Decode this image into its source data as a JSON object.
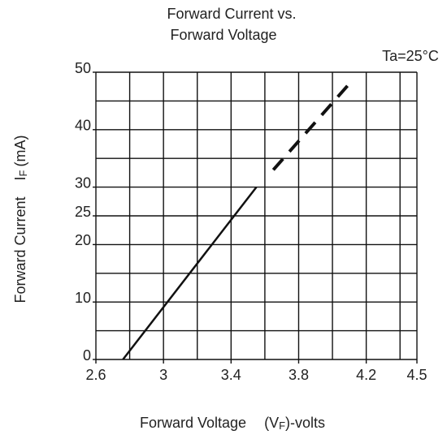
{
  "chart_data": {
    "type": "line",
    "title": [
      "Forward Current vs.",
      "Forward Voltage"
    ],
    "annotation": "Ta=25°C",
    "xlabel": [
      "Forward Voltage",
      "(V",
      "F",
      ")-volts"
    ],
    "ylabel": [
      "Forward Current",
      "I",
      "F",
      "(mA)"
    ],
    "xlim": [
      2.6,
      4.5
    ],
    "xticks": [
      2.6,
      3.0,
      3.4,
      3.8,
      4.2,
      4.5
    ],
    "xgrid": [
      2.6,
      2.8,
      3.0,
      3.2,
      3.4,
      3.6,
      3.8,
      4.0,
      4.2,
      4.4,
      4.5
    ],
    "ylim": [
      0,
      50
    ],
    "yticks": [
      0,
      10,
      20,
      25,
      30,
      40,
      50
    ],
    "ygrid": [
      0,
      5,
      10,
      15,
      20,
      25,
      30,
      35,
      40,
      45,
      50
    ],
    "grid": true,
    "series": [
      {
        "color": "#111",
        "dashed": false,
        "x": [
          2.76,
          3.55
        ],
        "values": [
          0,
          30
        ]
      },
      {
        "color": "#111",
        "dashed": true,
        "x": [
          3.65,
          4.1
        ],
        "values": [
          33,
          48
        ]
      }
    ]
  }
}
